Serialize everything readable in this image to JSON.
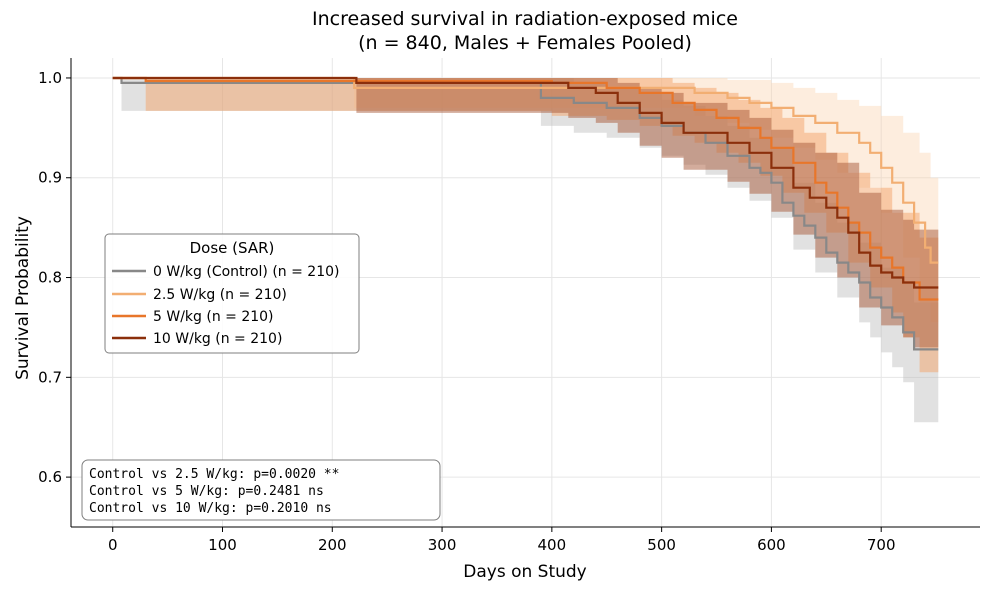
{
  "chart_data": {
    "type": "line",
    "subtype": "kaplan-meier step",
    "title_line1": "Increased survival in radiation-exposed mice",
    "title_line2": "(n = 840, Males + Females Pooled)",
    "xlabel": "Days on Study",
    "ylabel": "Survival Probability",
    "xlim": [
      -38,
      790
    ],
    "ylim": [
      0.55,
      1.02
    ],
    "xticks": [
      0,
      100,
      200,
      300,
      400,
      500,
      600,
      700
    ],
    "xtick_labels": [
      "0",
      "100",
      "200",
      "300",
      "400",
      "500",
      "600",
      "700"
    ],
    "yticks": [
      0.6,
      0.7,
      0.8,
      0.9,
      1.0
    ],
    "ytick_labels": [
      "0.6",
      "0.7",
      "0.8",
      "0.9",
      "1.0"
    ],
    "grid": true,
    "legend": {
      "title": "Dose (SAR)",
      "placement": "center-left"
    },
    "series": [
      {
        "name": "0 W/kg (Control) (n = 210)",
        "color": "#888888",
        "band_color": "#bdbdbd",
        "points": [
          [
            0,
            1.0
          ],
          [
            8,
            0.995
          ],
          [
            390,
            0.98
          ],
          [
            420,
            0.975
          ],
          [
            450,
            0.97
          ],
          [
            480,
            0.96
          ],
          [
            500,
            0.952
          ],
          [
            520,
            0.945
          ],
          [
            540,
            0.935
          ],
          [
            560,
            0.922
          ],
          [
            580,
            0.91
          ],
          [
            590,
            0.905
          ],
          [
            600,
            0.895
          ],
          [
            610,
            0.875
          ],
          [
            620,
            0.862
          ],
          [
            630,
            0.852
          ],
          [
            640,
            0.84
          ],
          [
            650,
            0.825
          ],
          [
            660,
            0.815
          ],
          [
            670,
            0.805
          ],
          [
            680,
            0.795
          ],
          [
            690,
            0.78
          ],
          [
            700,
            0.77
          ],
          [
            710,
            0.76
          ],
          [
            720,
            0.745
          ],
          [
            730,
            0.728
          ],
          [
            752,
            0.728
          ]
        ],
        "lower": [
          [
            0,
            1.0
          ],
          [
            8,
            0.967
          ],
          [
            390,
            0.952
          ],
          [
            420,
            0.945
          ],
          [
            450,
            0.94
          ],
          [
            480,
            0.93
          ],
          [
            500,
            0.922
          ],
          [
            520,
            0.913
          ],
          [
            540,
            0.903
          ],
          [
            560,
            0.89
          ],
          [
            580,
            0.877
          ],
          [
            600,
            0.86
          ],
          [
            620,
            0.828
          ],
          [
            640,
            0.805
          ],
          [
            660,
            0.78
          ],
          [
            680,
            0.755
          ],
          [
            690,
            0.74
          ],
          [
            700,
            0.725
          ],
          [
            710,
            0.71
          ],
          [
            720,
            0.695
          ],
          [
            730,
            0.655
          ],
          [
            752,
            0.655
          ]
        ],
        "upper": [
          [
            0,
            1.0
          ],
          [
            390,
            1.0
          ],
          [
            420,
            0.995
          ],
          [
            450,
            0.99
          ],
          [
            480,
            0.985
          ],
          [
            500,
            0.978
          ],
          [
            520,
            0.972
          ],
          [
            540,
            0.962
          ],
          [
            560,
            0.952
          ],
          [
            580,
            0.94
          ],
          [
            600,
            0.93
          ],
          [
            620,
            0.895
          ],
          [
            640,
            0.875
          ],
          [
            660,
            0.855
          ],
          [
            680,
            0.835
          ],
          [
            700,
            0.81
          ],
          [
            720,
            0.795
          ],
          [
            730,
            0.775
          ],
          [
            752,
            0.775
          ]
        ]
      },
      {
        "name": "2.5 W/kg (n = 210)",
        "color": "#f2ae72",
        "band_color": "#fbd3ad",
        "points": [
          [
            0,
            1.0
          ],
          [
            220,
            0.99
          ],
          [
            500,
            0.99
          ],
          [
            530,
            0.985
          ],
          [
            560,
            0.98
          ],
          [
            580,
            0.975
          ],
          [
            600,
            0.97
          ],
          [
            620,
            0.962
          ],
          [
            640,
            0.955
          ],
          [
            660,
            0.945
          ],
          [
            680,
            0.935
          ],
          [
            690,
            0.925
          ],
          [
            700,
            0.91
          ],
          [
            710,
            0.895
          ],
          [
            720,
            0.875
          ],
          [
            730,
            0.855
          ],
          [
            740,
            0.83
          ],
          [
            745,
            0.815
          ],
          [
            752,
            0.815
          ]
        ],
        "lower": [
          [
            0,
            1.0
          ],
          [
            220,
            0.97
          ],
          [
            500,
            0.97
          ],
          [
            530,
            0.962
          ],
          [
            560,
            0.955
          ],
          [
            580,
            0.948
          ],
          [
            600,
            0.94
          ],
          [
            620,
            0.93
          ],
          [
            640,
            0.918
          ],
          [
            660,
            0.905
          ],
          [
            680,
            0.89
          ],
          [
            700,
            0.865
          ],
          [
            720,
            0.82
          ],
          [
            735,
            0.775
          ],
          [
            745,
            0.755
          ],
          [
            752,
            0.755
          ]
        ],
        "upper": [
          [
            0,
            1.0
          ],
          [
            530,
            1.0
          ],
          [
            560,
            0.998
          ],
          [
            600,
            0.995
          ],
          [
            620,
            0.99
          ],
          [
            640,
            0.985
          ],
          [
            660,
            0.978
          ],
          [
            680,
            0.972
          ],
          [
            700,
            0.962
          ],
          [
            720,
            0.945
          ],
          [
            735,
            0.925
          ],
          [
            745,
            0.9
          ],
          [
            752,
            0.9
          ]
        ]
      },
      {
        "name": "5 W/kg (n = 210)",
        "color": "#e8762a",
        "band_color": "#f4a46a",
        "points": [
          [
            0,
            1.0
          ],
          [
            30,
            0.997
          ],
          [
            400,
            0.995
          ],
          [
            450,
            0.99
          ],
          [
            480,
            0.985
          ],
          [
            510,
            0.975
          ],
          [
            530,
            0.968
          ],
          [
            550,
            0.96
          ],
          [
            570,
            0.95
          ],
          [
            590,
            0.94
          ],
          [
            600,
            0.93
          ],
          [
            620,
            0.915
          ],
          [
            640,
            0.895
          ],
          [
            650,
            0.885
          ],
          [
            660,
            0.87
          ],
          [
            670,
            0.855
          ],
          [
            680,
            0.845
          ],
          [
            690,
            0.83
          ],
          [
            700,
            0.82
          ],
          [
            710,
            0.81
          ],
          [
            720,
            0.795
          ],
          [
            735,
            0.778
          ],
          [
            752,
            0.778
          ]
        ],
        "lower": [
          [
            0,
            1.0
          ],
          [
            30,
            0.967
          ],
          [
            400,
            0.962
          ],
          [
            450,
            0.958
          ],
          [
            480,
            0.952
          ],
          [
            510,
            0.942
          ],
          [
            530,
            0.935
          ],
          [
            550,
            0.925
          ],
          [
            570,
            0.915
          ],
          [
            590,
            0.902
          ],
          [
            610,
            0.885
          ],
          [
            630,
            0.865
          ],
          [
            650,
            0.845
          ],
          [
            670,
            0.815
          ],
          [
            690,
            0.79
          ],
          [
            710,
            0.765
          ],
          [
            720,
            0.74
          ],
          [
            735,
            0.705
          ],
          [
            752,
            0.705
          ]
        ],
        "upper": [
          [
            0,
            1.0
          ],
          [
            480,
            1.0
          ],
          [
            510,
            0.995
          ],
          [
            530,
            0.99
          ],
          [
            550,
            0.985
          ],
          [
            570,
            0.978
          ],
          [
            590,
            0.97
          ],
          [
            610,
            0.96
          ],
          [
            630,
            0.945
          ],
          [
            650,
            0.925
          ],
          [
            670,
            0.905
          ],
          [
            690,
            0.89
          ],
          [
            710,
            0.865
          ],
          [
            735,
            0.84
          ],
          [
            752,
            0.84
          ]
        ]
      },
      {
        "name": "10 W/kg (n = 210)",
        "color": "#8b2f0b",
        "band_color": "#a75a3a",
        "points": [
          [
            0,
            1.0
          ],
          [
            222,
            0.995
          ],
          [
            415,
            0.99
          ],
          [
            440,
            0.985
          ],
          [
            460,
            0.975
          ],
          [
            480,
            0.965
          ],
          [
            500,
            0.955
          ],
          [
            520,
            0.945
          ],
          [
            560,
            0.935
          ],
          [
            580,
            0.925
          ],
          [
            600,
            0.91
          ],
          [
            620,
            0.89
          ],
          [
            635,
            0.88
          ],
          [
            650,
            0.87
          ],
          [
            660,
            0.86
          ],
          [
            670,
            0.845
          ],
          [
            680,
            0.825
          ],
          [
            690,
            0.812
          ],
          [
            700,
            0.805
          ],
          [
            710,
            0.8
          ],
          [
            720,
            0.795
          ],
          [
            730,
            0.79
          ],
          [
            752,
            0.79
          ]
        ],
        "lower": [
          [
            0,
            1.0
          ],
          [
            222,
            0.965
          ],
          [
            415,
            0.96
          ],
          [
            440,
            0.955
          ],
          [
            460,
            0.945
          ],
          [
            480,
            0.932
          ],
          [
            500,
            0.92
          ],
          [
            520,
            0.908
          ],
          [
            560,
            0.896
          ],
          [
            580,
            0.884
          ],
          [
            600,
            0.866
          ],
          [
            620,
            0.843
          ],
          [
            640,
            0.82
          ],
          [
            660,
            0.8
          ],
          [
            680,
            0.77
          ],
          [
            700,
            0.752
          ],
          [
            720,
            0.74
          ],
          [
            730,
            0.73
          ],
          [
            752,
            0.73
          ]
        ],
        "upper": [
          [
            0,
            1.0
          ],
          [
            440,
            1.0
          ],
          [
            460,
            0.995
          ],
          [
            480,
            0.99
          ],
          [
            500,
            0.985
          ],
          [
            520,
            0.975
          ],
          [
            560,
            0.968
          ],
          [
            580,
            0.96
          ],
          [
            600,
            0.948
          ],
          [
            620,
            0.935
          ],
          [
            640,
            0.925
          ],
          [
            660,
            0.915
          ],
          [
            680,
            0.885
          ],
          [
            700,
            0.868
          ],
          [
            720,
            0.858
          ],
          [
            730,
            0.848
          ],
          [
            752,
            0.848
          ]
        ]
      }
    ],
    "stats_box": [
      "Control vs 2.5 W/kg: p=0.0020 **",
      "Control vs 5 W/kg: p=0.2481 ns",
      "Control vs 10 W/kg: p=0.2010 ns"
    ]
  }
}
